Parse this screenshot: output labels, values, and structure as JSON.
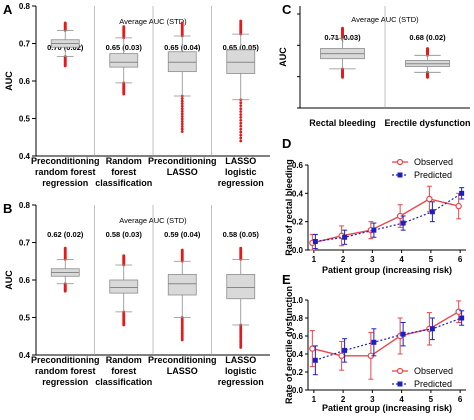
{
  "chart_data": [
    {
      "panel": "A",
      "type": "box",
      "header": "Average AUC (STD)",
      "ylabel": "AUC",
      "ylim": [
        0.4,
        0.8
      ],
      "yticks": [
        "0.4",
        "0.5",
        "0.6",
        "0.7",
        "0.8"
      ],
      "categories": [
        [
          "Preconditioning",
          "random forest",
          "regression"
        ],
        [
          "Random",
          "forest",
          "classification"
        ],
        [
          "Preconditioning",
          "LASSO"
        ],
        [
          "LASSO",
          "logistic",
          "regression"
        ]
      ],
      "stats": [
        "0.70 (0.02)",
        "0.65 (0.03)",
        "0.65 (0.04)",
        "0.65 (0.05)"
      ],
      "boxes": [
        {
          "q1": 0.69,
          "median": 0.7,
          "q3": 0.71,
          "lo": 0.665,
          "hi": 0.735,
          "out_lo": 0.64,
          "out_hi": 0.755
        },
        {
          "q1": 0.637,
          "median": 0.65,
          "q3": 0.673,
          "lo": 0.595,
          "hi": 0.715,
          "out_lo": 0.565,
          "out_hi": 0.745
        },
        {
          "q1": 0.625,
          "median": 0.65,
          "q3": 0.678,
          "lo": 0.56,
          "hi": 0.72,
          "out_lo": 0.465,
          "out_hi": 0.755
        },
        {
          "q1": 0.62,
          "median": 0.65,
          "q3": 0.683,
          "lo": 0.55,
          "hi": 0.725,
          "out_lo": 0.44,
          "out_hi": 0.76
        }
      ]
    },
    {
      "panel": "B",
      "type": "box",
      "header": "Average AUC (STD)",
      "ylabel": "AUC",
      "ylim": [
        0.4,
        0.8
      ],
      "yticks": [
        "0.4",
        "0.5",
        "0.6",
        "0.7",
        "0.8"
      ],
      "categories": [
        [
          "Preconditioning",
          "random forest",
          "regression"
        ],
        [
          "Random",
          "forest",
          "classification"
        ],
        [
          "Preconditioning",
          "LASSO"
        ],
        [
          "LASSO",
          "logistic",
          "regression"
        ]
      ],
      "stats": [
        "0.62 (0.02)",
        "0.58 (0.03)",
        "0.59 (0.04)",
        "0.58 (0.05)"
      ],
      "boxes": [
        {
          "q1": 0.61,
          "median": 0.62,
          "q3": 0.63,
          "lo": 0.59,
          "hi": 0.655,
          "out_lo": 0.57,
          "out_hi": 0.685
        },
        {
          "q1": 0.565,
          "median": 0.58,
          "q3": 0.6,
          "lo": 0.515,
          "hi": 0.64,
          "out_lo": 0.48,
          "out_hi": 0.665
        },
        {
          "q1": 0.56,
          "median": 0.59,
          "q3": 0.615,
          "lo": 0.5,
          "hi": 0.65,
          "out_lo": 0.44,
          "out_hi": 0.68
        },
        {
          "q1": 0.55,
          "median": 0.58,
          "q3": 0.615,
          "lo": 0.48,
          "hi": 0.655,
          "out_lo": 0.42,
          "out_hi": 0.685
        }
      ]
    },
    {
      "panel": "C",
      "type": "box",
      "header": "Average AUC (STD)",
      "ylabel": "AUC",
      "categories": [
        [
          "Rectal bleeding"
        ],
        [
          "Erectile dysfunction"
        ]
      ],
      "stats": [
        "0.71 (0.03)",
        "0.68 (0.02)"
      ],
      "boxes": [
        {
          "q1": 0.695,
          "median": 0.71,
          "q3": 0.725,
          "lo": 0.665,
          "hi": 0.755,
          "out_lo": 0.64,
          "out_hi": 0.785
        },
        {
          "q1": 0.672,
          "median": 0.68,
          "q3": 0.69,
          "lo": 0.655,
          "hi": 0.705,
          "out_lo": 0.64,
          "out_hi": 0.725
        }
      ]
    },
    {
      "panel": "D",
      "type": "line",
      "xlabel": "Patient group (increasing risk)",
      "ylabel": "Rate of rectal bleeding",
      "x": [
        1,
        2,
        3,
        4,
        5,
        6
      ],
      "ylim": [
        0,
        0.6
      ],
      "yticks": [
        "0.0",
        "0.2",
        "0.4",
        "0.6"
      ],
      "legend": [
        "Observed",
        "Predicted"
      ],
      "series": [
        {
          "name": "Observed",
          "values": [
            0.05,
            0.1,
            0.14,
            0.24,
            0.36,
            0.31
          ],
          "err": [
            0.06,
            0.07,
            0.06,
            0.08,
            0.09,
            0.09
          ],
          "color": "#e8474a"
        },
        {
          "name": "Predicted",
          "values": [
            0.06,
            0.09,
            0.14,
            0.19,
            0.27,
            0.4
          ],
          "err": [
            0.05,
            0.05,
            0.05,
            0.05,
            0.07,
            0.04
          ],
          "color": "#1f1fbf"
        }
      ]
    },
    {
      "panel": "E",
      "type": "line",
      "xlabel": "Patient group (increasing risk)",
      "ylabel": "Rate of erectile dysfunction",
      "x": [
        1,
        2,
        3,
        4,
        5,
        6
      ],
      "ylim": [
        0,
        1.0
      ],
      "yticks": [
        "0.0",
        "0.2",
        "0.4",
        "0.6",
        "0.8",
        "1.0"
      ],
      "legend": [
        "Observed",
        "Predicted"
      ],
      "series": [
        {
          "name": "Observed",
          "values": [
            0.46,
            0.38,
            0.38,
            0.6,
            0.68,
            0.87
          ],
          "err": [
            0.2,
            0.16,
            0.26,
            0.2,
            0.18,
            0.12
          ],
          "color": "#e8474a"
        },
        {
          "name": "Predicted",
          "values": [
            0.33,
            0.44,
            0.53,
            0.62,
            0.68,
            0.8
          ],
          "err": [
            0.16,
            0.13,
            0.15,
            0.13,
            0.12,
            0.08
          ],
          "color": "#1f1fbf"
        }
      ]
    }
  ]
}
